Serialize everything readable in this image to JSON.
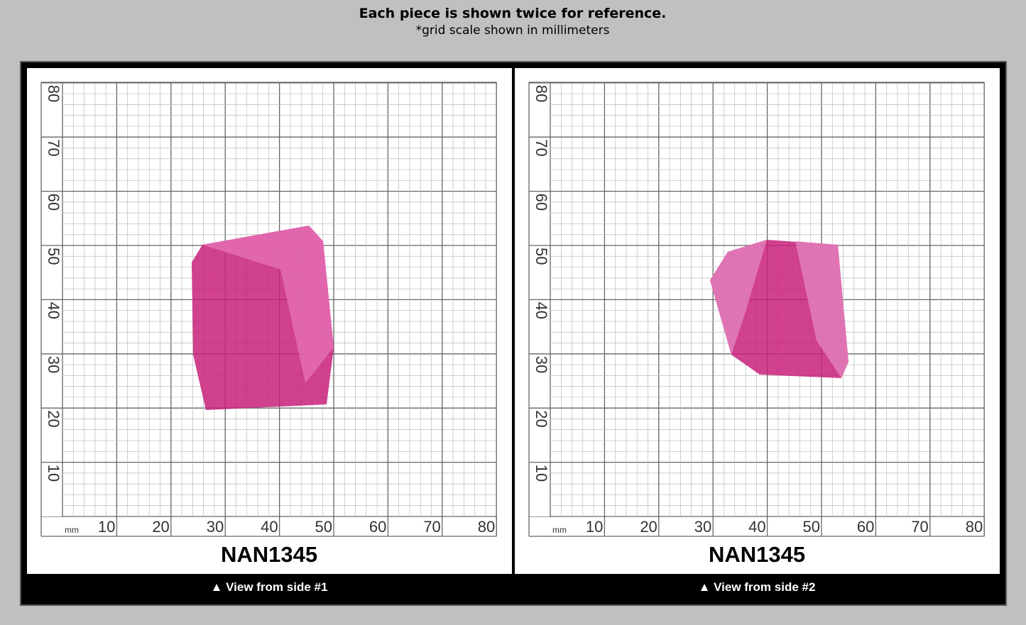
{
  "header": {
    "title": "Each piece is shown twice for reference.",
    "subtitle": "*grid scale shown in millimeters"
  },
  "grid": {
    "unit": "mm",
    "x_labels": [
      10,
      20,
      30,
      40,
      50,
      60,
      70,
      80
    ],
    "y_labels": [
      10,
      20,
      30,
      40,
      50,
      60,
      70,
      80
    ]
  },
  "panels": [
    {
      "code": "NAN1345",
      "caption": "▲ View from side #1"
    },
    {
      "code": "NAN1345",
      "caption": "▲ View from side #2"
    }
  ]
}
